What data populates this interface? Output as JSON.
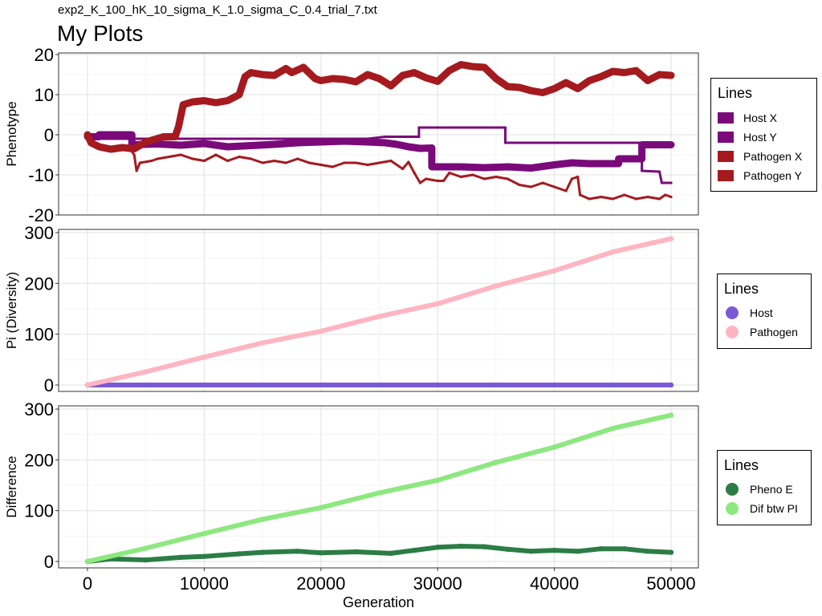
{
  "header": {
    "subtitle": "exp2_K_100_hK_10_sigma_K_1.0_sigma_C_0.4_trial_7.txt",
    "title": "My Plots"
  },
  "chart_data": [
    {
      "type": "line",
      "ylabel": "Phenotype",
      "ylim": [
        -20,
        20
      ],
      "yticks": [
        "-20",
        "-10",
        "0",
        "10",
        "20"
      ],
      "xlim": [
        0,
        50000
      ],
      "grid": true,
      "legend": {
        "title": "Lines",
        "placement": "right",
        "entries": [
          "Host X",
          "Host Y",
          "Pathogen X",
          "Pathogen Y"
        ]
      },
      "series": [
        {
          "name": "Host X",
          "color": "#7a0a7a",
          "style": "thick",
          "x": [
            0,
            1000,
            1000,
            3800,
            3800,
            6000,
            8000,
            10000,
            12000,
            14000,
            16000,
            18000,
            20000,
            22000,
            24000,
            25500,
            26500,
            27500,
            28500,
            29500,
            29500,
            32000,
            34000,
            36000,
            38000,
            40000,
            41500,
            43000,
            45500,
            45500,
            47500,
            47500,
            50000
          ],
          "y": [
            -0.5,
            -0.5,
            0,
            0,
            -2.5,
            -2.3,
            -2.6,
            -2.2,
            -3.0,
            -2.7,
            -2.4,
            -2.0,
            -1.8,
            -1.6,
            -1.8,
            -2.0,
            -2.4,
            -3.0,
            -3.4,
            -3.3,
            -8.0,
            -8.0,
            -8.2,
            -8.0,
            -8.3,
            -7.5,
            -7.0,
            -7.2,
            -7.2,
            -6.0,
            -6.0,
            -2.5,
            -2.5
          ]
        },
        {
          "name": "Host Y",
          "color": "#7a0a7a",
          "style": "thin",
          "x": [
            1000,
            24000,
            25500,
            28400,
            28400,
            35800,
            35800,
            47500,
            47500,
            49000,
            49200,
            50000
          ],
          "y": [
            -1.0,
            -1.0,
            -0.5,
            -0.5,
            1.8,
            1.8,
            -2.0,
            -2.0,
            -9.0,
            -9.2,
            -12.0,
            -12.0
          ]
        },
        {
          "name": "Pathogen X",
          "color": "#a51a1f",
          "style": "thick",
          "x": [
            0,
            300,
            1000,
            2000,
            3000,
            4000,
            5000,
            6500,
            7500,
            7800,
            8200,
            9000,
            10000,
            11000,
            12000,
            13000,
            13500,
            14000,
            15000,
            16000,
            17000,
            17500,
            18500,
            19500,
            20000,
            21000,
            22000,
            23000,
            24000,
            25000,
            26000,
            26500,
            27000,
            28000,
            29000,
            30000,
            31000,
            32000,
            33000,
            34000,
            35000,
            36000,
            37000,
            38000,
            39000,
            40000,
            41000,
            42000,
            43000,
            44000,
            45000,
            46000,
            47000,
            48000,
            49000,
            50000
          ],
          "y": [
            0,
            -2.0,
            -3.0,
            -3.6,
            -3.2,
            -3.5,
            -1.8,
            -0.5,
            -0.5,
            2.0,
            7.5,
            8.2,
            8.5,
            8.0,
            8.5,
            10.0,
            14.5,
            15.5,
            15.0,
            14.8,
            16.5,
            15.5,
            16.8,
            14.0,
            13.5,
            14.0,
            13.8,
            13.2,
            15.0,
            14.0,
            12.2,
            13.5,
            14.8,
            15.5,
            14.2,
            13.3,
            16.0,
            17.5,
            17.0,
            16.8,
            14.0,
            12.0,
            11.8,
            11.0,
            10.5,
            11.5,
            13.0,
            11.5,
            13.5,
            14.5,
            15.8,
            15.5,
            16.0,
            13.5,
            15.0,
            14.8
          ]
        },
        {
          "name": "Pathogen Y",
          "color": "#a51a1f",
          "style": "thin",
          "x": [
            0,
            1000,
            2000,
            3500,
            4000,
            4200,
            4500,
            5500,
            6000,
            8000,
            9000,
            10000,
            11000,
            12000,
            13000,
            14000,
            15000,
            16000,
            17000,
            18000,
            19000,
            20000,
            21000,
            22000,
            23000,
            24000,
            25000,
            26000,
            27000,
            27500,
            28000,
            28500,
            29000,
            30000,
            30500,
            31000,
            32000,
            33000,
            34000,
            35000,
            36000,
            37000,
            38000,
            39000,
            40000,
            41000,
            41500,
            42000,
            42200,
            43000,
            44000,
            45000,
            46000,
            47000,
            48000,
            49000,
            49500,
            50000
          ],
          "y": [
            -1.0,
            -3.0,
            -3.2,
            -3.0,
            -5.0,
            -9.0,
            -7.0,
            -6.5,
            -6.0,
            -5.0,
            -6.0,
            -6.5,
            -5.0,
            -6.5,
            -5.5,
            -6.0,
            -7.0,
            -6.5,
            -7.0,
            -6.0,
            -7.0,
            -7.5,
            -8.0,
            -7.0,
            -7.0,
            -7.5,
            -7.0,
            -6.5,
            -8.5,
            -6.8,
            -9.5,
            -12.0,
            -11.0,
            -11.5,
            -11.5,
            -9.5,
            -10.5,
            -10.0,
            -11.0,
            -10.5,
            -11.0,
            -12.5,
            -13.0,
            -12.0,
            -13.0,
            -14.0,
            -11.0,
            -10.5,
            -15.0,
            -16.0,
            -15.5,
            -16.0,
            -15.0,
            -16.0,
            -15.5,
            -16.0,
            -15.0,
            -15.5
          ]
        }
      ]
    },
    {
      "type": "line",
      "ylabel": "Pi (Diversity)",
      "ylim": [
        0,
        300
      ],
      "yticks": [
        "0",
        "100",
        "200",
        "300"
      ],
      "xlim": [
        0,
        50000
      ],
      "grid": true,
      "legend": {
        "title": "Lines",
        "placement": "right",
        "entries": [
          "Host",
          "Pathogen"
        ]
      },
      "series": [
        {
          "name": "Host",
          "color": "#7b59d6",
          "x": [
            0,
            50000
          ],
          "y": [
            0,
            0
          ]
        },
        {
          "name": "Pathogen",
          "color": "#ffb5c1",
          "x": [
            0,
            5000,
            10000,
            15000,
            20000,
            25000,
            30000,
            35000,
            40000,
            45000,
            50000
          ],
          "y": [
            0,
            26,
            55,
            83,
            106,
            135,
            160,
            195,
            225,
            262,
            288
          ]
        }
      ]
    },
    {
      "type": "line",
      "ylabel": "Difference",
      "xlabel": "Generation",
      "ylim": [
        0,
        300
      ],
      "yticks": [
        "0",
        "100",
        "200",
        "300"
      ],
      "xlim": [
        0,
        50000
      ],
      "xticks": [
        "0",
        "10000",
        "20000",
        "30000",
        "40000",
        "50000"
      ],
      "grid": true,
      "legend": {
        "title": "Lines",
        "placement": "right",
        "entries": [
          "Pheno E",
          "Dif btw PI"
        ]
      },
      "series": [
        {
          "name": "Pheno E",
          "color": "#2b7d45",
          "x": [
            0,
            2000,
            5000,
            8000,
            10000,
            13000,
            15000,
            18000,
            20000,
            23000,
            26000,
            28000,
            30000,
            32000,
            34000,
            36000,
            38000,
            40000,
            42000,
            44000,
            46000,
            48000,
            50000
          ],
          "y": [
            0,
            5,
            3,
            8,
            10,
            15,
            18,
            20,
            17,
            19,
            16,
            22,
            28,
            30,
            29,
            24,
            20,
            22,
            20,
            25,
            25,
            20,
            18
          ]
        },
        {
          "name": "Dif btw PI",
          "color": "#8ce87f",
          "x": [
            0,
            5000,
            10000,
            15000,
            20000,
            25000,
            30000,
            35000,
            40000,
            45000,
            50000
          ],
          "y": [
            0,
            26,
            55,
            83,
            106,
            135,
            160,
            195,
            225,
            262,
            288
          ]
        }
      ]
    }
  ]
}
